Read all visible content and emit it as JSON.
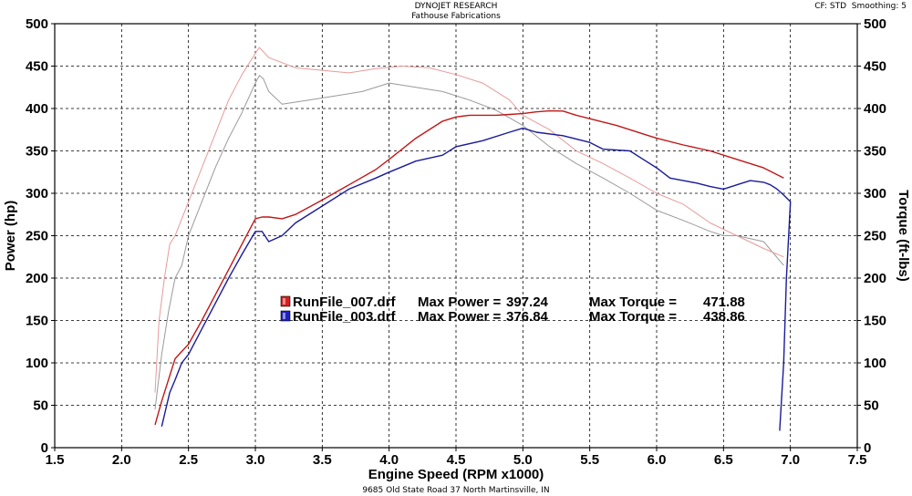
{
  "header": {
    "title": "DYNOJET RESEARCH",
    "subtitle": "Fathouse Fabrications",
    "settings": "CF: STD  Smoothing: 5"
  },
  "footer": {
    "address": "9685 Old State Road 37 North Martinsville, IN"
  },
  "chart_data": {
    "type": "line",
    "xlabel": "Engine Speed (RPM x1000)",
    "ylabel": "Power (hp)",
    "y2label": "Torque (ft-lbs)",
    "xlim": [
      1.5,
      7.5
    ],
    "ylim": [
      0,
      500
    ],
    "y2lim": [
      0,
      500
    ],
    "xticks": [
      "1.5",
      "2.0",
      "2.5",
      "3.0",
      "3.5",
      "4.0",
      "4.5",
      "5.0",
      "5.5",
      "6.0",
      "6.5",
      "7.0",
      "7.5"
    ],
    "yticks": [
      "0",
      "50",
      "100",
      "150",
      "200",
      "250",
      "300",
      "350",
      "400",
      "450",
      "500"
    ],
    "grid": true,
    "legend_position": "center",
    "colors": {
      "run007_power": "#c01818",
      "run003_power": "#1a1a9a",
      "run007_torque": "#e89a9a",
      "run003_torque": "#9a9a9a"
    },
    "legend": [
      {
        "file": "RunFile_007.drf",
        "max_power_label": "Max Power =",
        "max_power": "397.24",
        "max_torque_label": "Max Torque =",
        "max_torque": "471.88",
        "color": "#d42020"
      },
      {
        "file": "RunFile_003.drf",
        "max_power_label": "Max Power =",
        "max_power": "376.84",
        "max_torque_label": "Max Torque =",
        "max_torque": "438.86",
        "color": "#2020c0"
      }
    ],
    "series": [
      {
        "key": "run007_power",
        "axis": "left",
        "x": [
          2.25,
          2.3,
          2.35,
          2.4,
          2.5,
          2.6,
          2.7,
          2.8,
          2.9,
          3.0,
          3.05,
          3.1,
          3.2,
          3.3,
          3.5,
          3.7,
          3.9,
          4.0,
          4.2,
          4.4,
          4.5,
          4.6,
          4.8,
          4.9,
          5.0,
          5.1,
          5.2,
          5.3,
          5.4,
          5.5,
          5.7,
          5.9,
          6.0,
          6.2,
          6.4,
          6.6,
          6.8,
          6.95
        ],
        "y": [
          27,
          55,
          80,
          105,
          122,
          150,
          180,
          210,
          240,
          270,
          272,
          272,
          270,
          275,
          292,
          310,
          328,
          340,
          365,
          385,
          390,
          392,
          392,
          393,
          394,
          396,
          397.2,
          397,
          392,
          388,
          380,
          370,
          365,
          357,
          350,
          340,
          330,
          318
        ]
      },
      {
        "key": "run003_power",
        "axis": "left",
        "x": [
          2.3,
          2.33,
          2.36,
          2.4,
          2.45,
          2.5,
          2.6,
          2.7,
          2.8,
          2.9,
          3.0,
          3.05,
          3.1,
          3.2,
          3.3,
          3.5,
          3.7,
          3.9,
          4.0,
          4.2,
          4.4,
          4.5,
          4.7,
          4.9,
          5.0,
          5.1,
          5.3,
          5.5,
          5.6,
          5.8,
          5.9,
          6.0,
          6.1,
          6.2,
          6.3,
          6.4,
          6.5,
          6.6,
          6.7,
          6.8,
          6.85,
          6.9,
          6.95,
          7.0,
          6.97,
          6.95,
          6.92
        ],
        "y": [
          25,
          45,
          65,
          80,
          100,
          110,
          140,
          170,
          200,
          228,
          255,
          255,
          243,
          250,
          265,
          285,
          305,
          318,
          325,
          338,
          345,
          355,
          362,
          372,
          376.8,
          372,
          368,
          360,
          352,
          350,
          340,
          330,
          318,
          315,
          312,
          308,
          305,
          310,
          315,
          313,
          310,
          305,
          298,
          290,
          200,
          100,
          20
        ]
      },
      {
        "key": "run007_torque",
        "axis": "right",
        "x": [
          2.25,
          2.28,
          2.32,
          2.36,
          2.4,
          2.5,
          2.6,
          2.7,
          2.8,
          2.9,
          3.0,
          3.03,
          3.1,
          3.3,
          3.5,
          3.7,
          3.9,
          4.1,
          4.3,
          4.5,
          4.7,
          4.9,
          5.0,
          5.2,
          5.4,
          5.6,
          5.8,
          6.0,
          6.2,
          6.4,
          6.6,
          6.8,
          6.95
        ],
        "y": [
          65,
          150,
          200,
          240,
          250,
          290,
          330,
          370,
          410,
          440,
          465,
          471.9,
          460,
          448,
          445,
          442,
          447,
          450,
          448,
          440,
          430,
          410,
          392,
          375,
          350,
          335,
          318,
          300,
          287,
          265,
          250,
          235,
          225
        ]
      },
      {
        "key": "run003_torque",
        "axis": "right",
        "x": [
          2.25,
          2.3,
          2.35,
          2.4,
          2.45,
          2.5,
          2.6,
          2.7,
          2.8,
          2.9,
          3.0,
          3.03,
          3.06,
          3.1,
          3.2,
          3.4,
          3.6,
          3.8,
          4.0,
          4.2,
          4.4,
          4.6,
          4.8,
          5.0,
          5.2,
          5.4,
          5.6,
          5.8,
          6.0,
          6.2,
          6.4,
          6.5,
          6.6,
          6.8,
          6.95
        ],
        "y": [
          45,
          110,
          160,
          200,
          215,
          250,
          290,
          330,
          365,
          395,
          430,
          438.9,
          435,
          420,
          405,
          410,
          415,
          420,
          430,
          425,
          420,
          410,
          398,
          380,
          355,
          335,
          318,
          300,
          280,
          268,
          255,
          250,
          250,
          243,
          215
        ]
      }
    ]
  }
}
